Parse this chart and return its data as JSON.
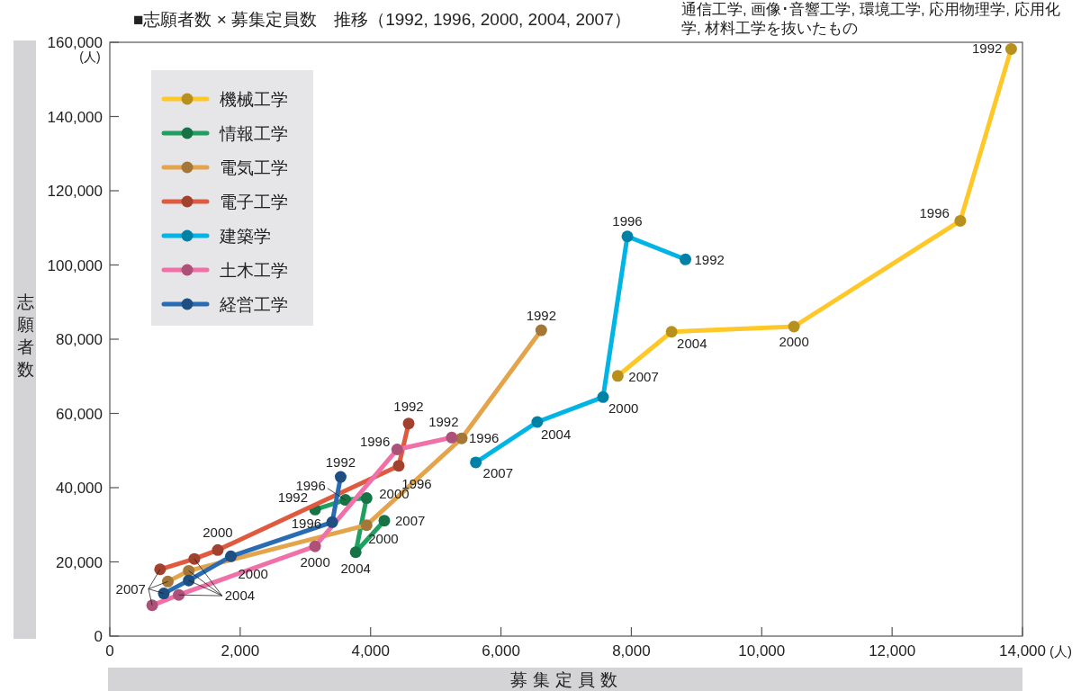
{
  "chart_data": {
    "type": "line",
    "title": "■志願者数 × 募集定員数　推移（1992, 1996, 2000, 2004, 2007）",
    "xlabel": "募集定員数",
    "ylabel": "志願者数",
    "marker": "circle",
    "line_style": "solid",
    "legend": "top left",
    "grid": false,
    "xlim": [
      0,
      14000
    ],
    "ylim": [
      0,
      160000
    ],
    "xticks": [
      0,
      {
        "value": 2000,
        "label": "2,000"
      },
      {
        "value": 4000,
        "label": "4,000"
      },
      {
        "value": 6000,
        "label": "6,000"
      },
      {
        "value": 8000,
        "label": "8,000"
      },
      {
        "value": 10000,
        "label": "10,000"
      },
      {
        "value": 12000,
        "label": "12,000"
      },
      {
        "value": 14000,
        "label": "14,000"
      }
    ],
    "yticks": [
      0,
      {
        "value": 20000,
        "label": "20,000"
      },
      {
        "value": 40000,
        "label": "40,000"
      },
      {
        "value": 60000,
        "label": "60,000"
      },
      {
        "value": 80000,
        "label": "80,000"
      },
      {
        "value": 100000,
        "label": "100,000"
      },
      {
        "value": 120000,
        "label": "120,000"
      },
      {
        "value": 140000,
        "label": "140,000"
      },
      {
        "value": 160000,
        "label": "160,000"
      }
    ],
    "series": [
      {
        "name": "機械工学",
        "color": "#ffc828",
        "x": [
          13826,
          13046,
          10495,
          8617,
          7792
        ],
        "values": [
          158200,
          111900,
          83400,
          82000,
          70100
        ]
      },
      {
        "name": "情報工学",
        "color": "#1fa060",
        "x": [
          3149,
          3614,
          3939,
          3772,
          4211
        ],
        "values": [
          34100,
          36700,
          37200,
          22600,
          31100
        ]
      },
      {
        "name": "電気工学",
        "color": "#e4a44c",
        "x": [
          6618,
          5398,
          3939,
          1211,
          890
        ],
        "values": [
          82400,
          53300,
          29900,
          17600,
          14700
        ]
      },
      {
        "name": "電子工学",
        "color": "#e05a40",
        "x": [
          4584,
          4432,
          1656,
          1297,
          771
        ],
        "values": [
          57300,
          45900,
          23200,
          20800,
          18000
        ]
      },
      {
        "name": "建築学",
        "color": "#00b4e6",
        "x": [
          8830,
          7939,
          7566,
          6557,
          5614
        ],
        "values": [
          101500,
          107700,
          64400,
          57700,
          46800
        ]
      },
      {
        "name": "土木工学",
        "color": "#f070a8",
        "x": [
          5245,
          4408,
          3149,
          1058,
          650
        ],
        "values": [
          53500,
          50300,
          24200,
          11100,
          8300
        ]
      },
      {
        "name": "経営工学",
        "color": "#2a6cb4",
        "x": [
          3541,
          3412,
          1857,
          1211,
          828
        ],
        "values": [
          42900,
          30700,
          21500,
          15000,
          11500
        ]
      }
    ],
    "annotations": [
      "通信工学, 画像･音響工学, 環境工学, 応用物理学, 応用化学, 材料工学を抜いたもの",
      "(人)",
      "(人)",
      {
        "text": "1992",
        "x": 13826,
        "y": 158200
      },
      {
        "text": "1996",
        "x": 13046,
        "y": 111900
      },
      {
        "text": "2000",
        "x": 10495,
        "y": 83400
      },
      {
        "text": "2004",
        "x": 8617,
        "y": 82000
      },
      {
        "text": "2007",
        "x": 7792,
        "y": 70100
      },
      {
        "text": "1992",
        "x": 8830,
        "y": 101500
      },
      {
        "text": "1996",
        "x": 7939,
        "y": 107700
      },
      {
        "text": "2000",
        "x": 7566,
        "y": 64400
      },
      {
        "text": "2004",
        "x": 6557,
        "y": 57700
      },
      {
        "text": "2007",
        "x": 5614,
        "y": 46800
      },
      {
        "text": "1992",
        "x": 6618,
        "y": 82400
      },
      {
        "text": "1996",
        "x": 5398,
        "y": 53300
      },
      {
        "text": "2000",
        "x": 3939,
        "y": 29900
      },
      {
        "text": "1992",
        "x": 4584,
        "y": 57300
      },
      {
        "text": "1996",
        "x": 4432,
        "y": 45900
      },
      {
        "text": "2000",
        "x": 1656,
        "y": 23200
      },
      {
        "text": "1992",
        "x": 3541,
        "y": 42900
      },
      {
        "text": "1996",
        "x": 3412,
        "y": 30700
      },
      {
        "text": "2000",
        "x": 1857,
        "y": 21500
      },
      {
        "text": "1992",
        "x": 3149,
        "y": 34100
      },
      {
        "text": "1996",
        "x": 3614,
        "y": 36700
      },
      {
        "text": "2000",
        "x": 3939,
        "y": 37200
      },
      {
        "text": "2004",
        "x": 3772,
        "y": 22600
      },
      {
        "text": "2007",
        "x": 4211,
        "y": 31100
      },
      {
        "text": "1992",
        "x": 5245,
        "y": 53500
      },
      {
        "text": "1996",
        "x": 4408,
        "y": 50300
      },
      {
        "text": "2000",
        "x": 3149,
        "y": 24200
      },
      {
        "text": "2007",
        "x": 828,
        "y": 11500
      },
      {
        "text": "2004",
        "x": 1211,
        "y": 15000
      }
    ]
  }
}
